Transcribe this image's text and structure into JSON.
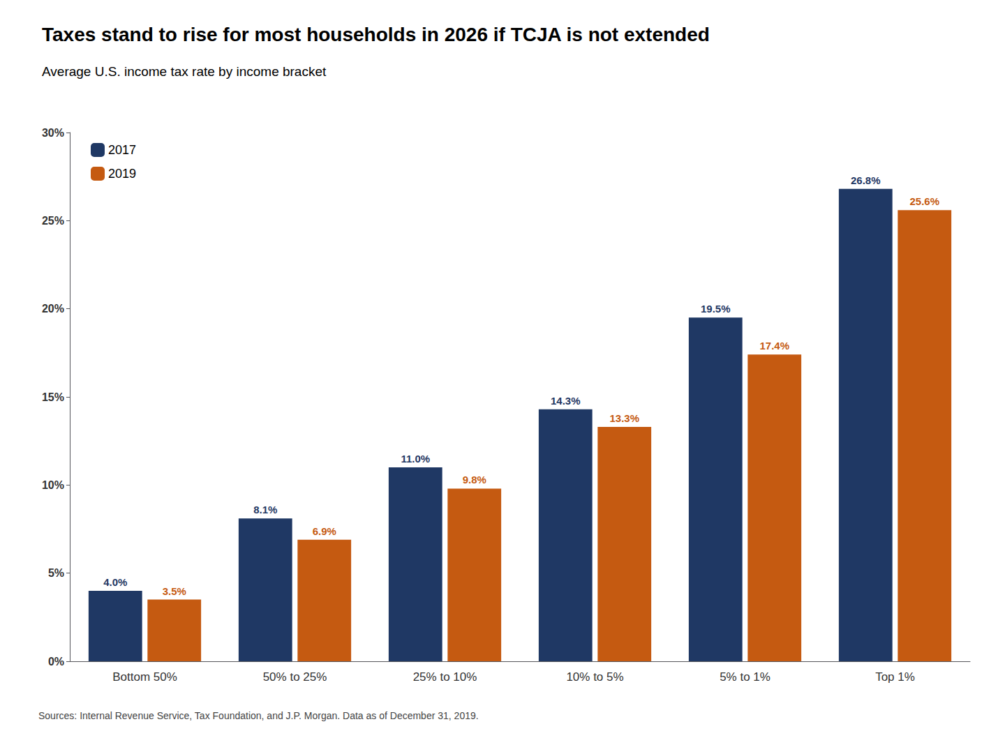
{
  "chart_data": {
    "type": "bar",
    "title": "Taxes stand to rise for most households in 2026 if TCJA is not extended",
    "subtitle": "Average U.S. income tax rate by income bracket",
    "source": "Sources: Internal Revenue Service, Tax Foundation, and J.P. Morgan. Data as of December 31, 2019.",
    "categories": [
      "Bottom 50%",
      "50% to 25%",
      "25% to 10%",
      "10% to 5%",
      "5% to 1%",
      "Top 1%"
    ],
    "series": [
      {
        "name": "2017",
        "color": "#1f3864",
        "values": [
          4.0,
          8.1,
          11.0,
          14.3,
          19.5,
          26.8
        ],
        "value_labels": [
          "4.0%",
          "8.1%",
          "11.0%",
          "14.3%",
          "19.5%",
          "26.8%"
        ]
      },
      {
        "name": "2019",
        "color": "#c55a11",
        "values": [
          3.5,
          6.9,
          9.8,
          13.3,
          17.4,
          25.6
        ],
        "value_labels": [
          "3.5%",
          "6.9%",
          "9.8%",
          "13.3%",
          "17.4%",
          "25.6%"
        ]
      }
    ],
    "ylim": [
      0,
      30
    ],
    "yticks": [
      {
        "value": 0,
        "label": "0%"
      },
      {
        "value": 5,
        "label": "5%"
      },
      {
        "value": 10,
        "label": "10%"
      },
      {
        "value": 15,
        "label": "15%"
      },
      {
        "value": 20,
        "label": "20%"
      },
      {
        "value": 25,
        "label": "25%"
      },
      {
        "value": 30,
        "label": "30%"
      }
    ],
    "grid": false,
    "legend": "upper left",
    "data_labels": true
  }
}
